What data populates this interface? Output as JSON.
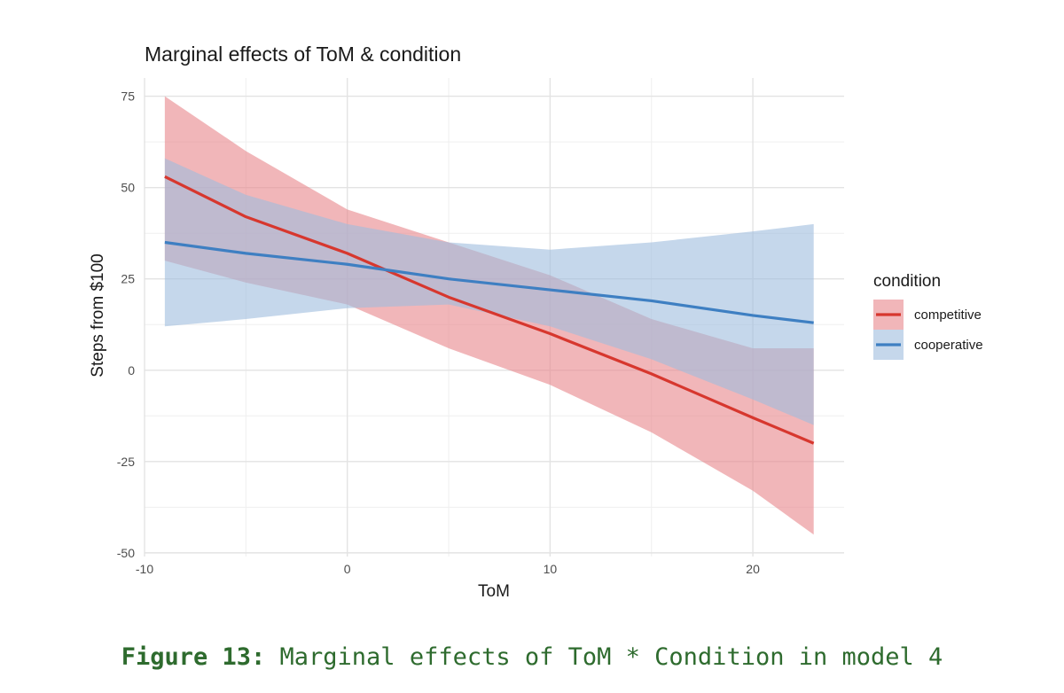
{
  "chart_data": {
    "type": "line",
    "title": "Marginal effects of ToM & condition",
    "xlabel": "ToM",
    "ylabel": "Steps from $100",
    "xlim": [
      -10,
      24.5
    ],
    "ylim": [
      -51,
      80
    ],
    "x_ticks": [
      -10,
      0,
      10,
      20
    ],
    "y_ticks": [
      75,
      50,
      25,
      0,
      -25,
      -50
    ],
    "grid": true,
    "legend": {
      "title": "condition",
      "position": "right"
    },
    "series": [
      {
        "name": "competitive",
        "color": "#d7372e",
        "band_color": "#e8868a",
        "x": [
          -9,
          -5,
          0,
          5,
          10,
          15,
          20,
          23
        ],
        "y": [
          53,
          42,
          32,
          20,
          10,
          -1,
          -13,
          -20
        ],
        "lower": [
          30,
          24,
          18,
          6,
          -4,
          -17,
          -33,
          -45
        ],
        "upper": [
          75,
          60,
          44,
          35,
          26,
          14,
          6,
          6
        ]
      },
      {
        "name": "cooperative",
        "color": "#3e7fc2",
        "band_color": "#9fbcde",
        "x": [
          -9,
          -5,
          0,
          5,
          10,
          15,
          20,
          23
        ],
        "y": [
          35,
          32,
          29,
          25,
          22,
          19,
          15,
          13
        ],
        "lower": [
          12,
          14,
          17,
          18,
          12,
          3,
          -8,
          -15
        ],
        "upper": [
          58,
          48,
          40,
          35,
          33,
          35,
          38,
          40
        ]
      }
    ]
  },
  "caption": {
    "label": "Figure 13:",
    "text": " Marginal effects of ToM * Condition in model 4"
  }
}
